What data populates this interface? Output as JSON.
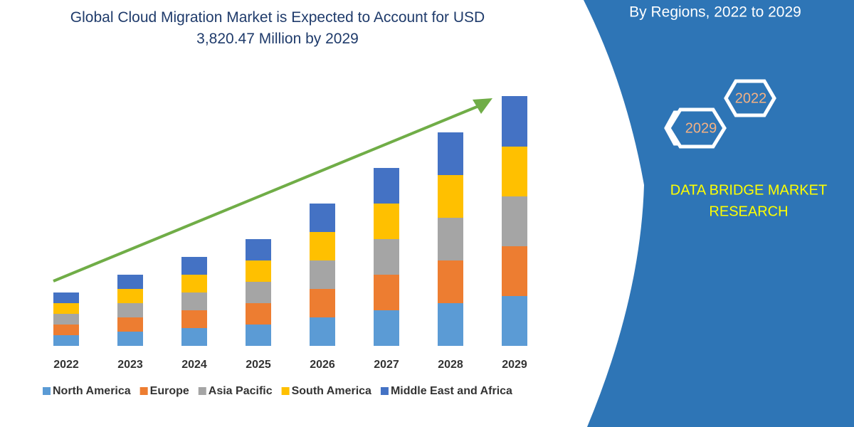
{
  "chart_data": {
    "type": "stacked-bar",
    "title": "Global Cloud Migration Market is Expected to Account for USD 3,820.47 Million by 2029",
    "categories": [
      "2022",
      "2023",
      "2024",
      "2025",
      "2026",
      "2027",
      "2028",
      "2029"
    ],
    "series": [
      {
        "name": "North America",
        "color": "#5b9bd5",
        "values": [
          15,
          20,
          25,
          30,
          40,
          50,
          60,
          70
        ]
      },
      {
        "name": "Europe",
        "color": "#ed7d31",
        "values": [
          15,
          20,
          25,
          30,
          40,
          50,
          60,
          70
        ]
      },
      {
        "name": "Asia Pacific",
        "color": "#a5a5a5",
        "values": [
          15,
          20,
          25,
          30,
          40,
          50,
          60,
          70
        ]
      },
      {
        "name": "South America",
        "color": "#ffc000",
        "values": [
          15,
          20,
          25,
          30,
          40,
          50,
          60,
          70
        ]
      },
      {
        "name": "Middle East and Africa",
        "color": "#4472c4",
        "values": [
          15,
          20,
          25,
          30,
          40,
          50,
          60,
          71
        ]
      }
    ],
    "ylim": [
      0,
      360
    ]
  },
  "side_panel": {
    "subtitle": "By Regions, 2022 to 2029",
    "badges": [
      "2022",
      "2029"
    ],
    "brand_lines": [
      "DATA BRIDGE MARKET",
      "RESEARCH"
    ]
  }
}
